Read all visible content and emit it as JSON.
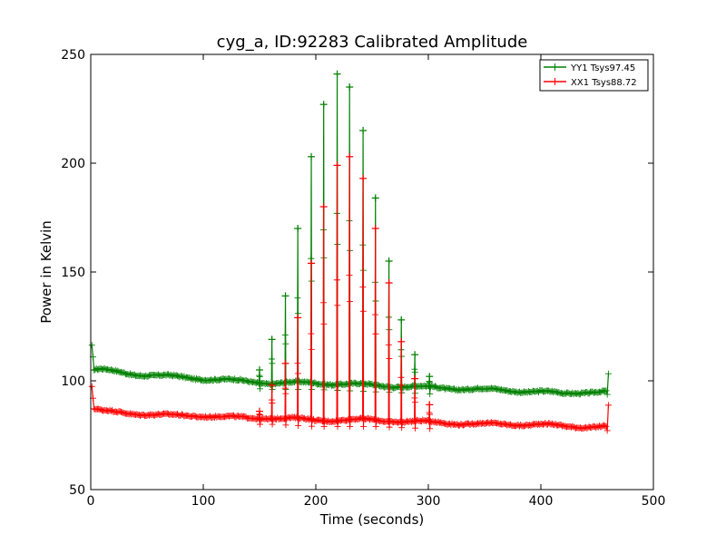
{
  "chart_data": {
    "type": "line",
    "title": "cyg_a, ID:92283 Calibrated Amplitude",
    "xlabel": "Time (seconds)",
    "ylabel": "Power in Kelvin",
    "xlim": [
      0,
      500
    ],
    "ylim": [
      50,
      250
    ],
    "xticks": [
      "0",
      "100",
      "200",
      "300",
      "400",
      "500"
    ],
    "yticks": [
      "50",
      "100",
      "150",
      "200",
      "250"
    ],
    "grid": false,
    "legend_position": "top-right",
    "markers": "+",
    "series": [
      {
        "name": "YY1 Tsys97.45",
        "color": "#008000",
        "baseline": [
          [
            1,
            116
          ],
          [
            3,
            105
          ],
          [
            10,
            105
          ],
          [
            40,
            103
          ],
          [
            70,
            102
          ],
          [
            100,
            101
          ],
          [
            130,
            100
          ],
          [
            160,
            99
          ],
          [
            200,
            99
          ],
          [
            250,
            98
          ],
          [
            300,
            97
          ],
          [
            350,
            96
          ],
          [
            400,
            95
          ],
          [
            420,
            94
          ],
          [
            440,
            95
          ],
          [
            458,
            95
          ],
          [
            459,
            93
          ],
          [
            460,
            103
          ]
        ],
        "spikes": [
          {
            "x": 150,
            "peak": 105
          },
          {
            "x": 161,
            "peak": 119
          },
          {
            "x": 173,
            "peak": 139
          },
          {
            "x": 184,
            "peak": 170
          },
          {
            "x": 196,
            "peak": 203
          },
          {
            "x": 207,
            "peak": 227
          },
          {
            "x": 219,
            "peak": 241
          },
          {
            "x": 230,
            "peak": 235
          },
          {
            "x": 242,
            "peak": 215
          },
          {
            "x": 253,
            "peak": 184
          },
          {
            "x": 265,
            "peak": 155
          },
          {
            "x": 276,
            "peak": 128
          },
          {
            "x": 288,
            "peak": 112
          },
          {
            "x": 301,
            "peak": 102
          }
        ]
      },
      {
        "name": "XX1 Tsys88.72",
        "color": "#ff0000",
        "baseline": [
          [
            1,
            97
          ],
          [
            3,
            87
          ],
          [
            10,
            86
          ],
          [
            40,
            85
          ],
          [
            70,
            84
          ],
          [
            100,
            84
          ],
          [
            130,
            83
          ],
          [
            160,
            83
          ],
          [
            200,
            82
          ],
          [
            250,
            82
          ],
          [
            300,
            81
          ],
          [
            350,
            80
          ],
          [
            400,
            80
          ],
          [
            420,
            79
          ],
          [
            440,
            79
          ],
          [
            458,
            79
          ],
          [
            459,
            77
          ],
          [
            460,
            88
          ]
        ],
        "spikes": [
          {
            "x": 150,
            "peak": 86
          },
          {
            "x": 161,
            "peak": 98
          },
          {
            "x": 173,
            "peak": 108
          },
          {
            "x": 184,
            "peak": 129
          },
          {
            "x": 196,
            "peak": 154
          },
          {
            "x": 207,
            "peak": 180
          },
          {
            "x": 219,
            "peak": 199
          },
          {
            "x": 230,
            "peak": 203
          },
          {
            "x": 242,
            "peak": 193
          },
          {
            "x": 253,
            "peak": 170
          },
          {
            "x": 265,
            "peak": 145
          },
          {
            "x": 276,
            "peak": 118
          },
          {
            "x": 288,
            "peak": 101
          },
          {
            "x": 301,
            "peak": 89
          }
        ]
      }
    ]
  }
}
